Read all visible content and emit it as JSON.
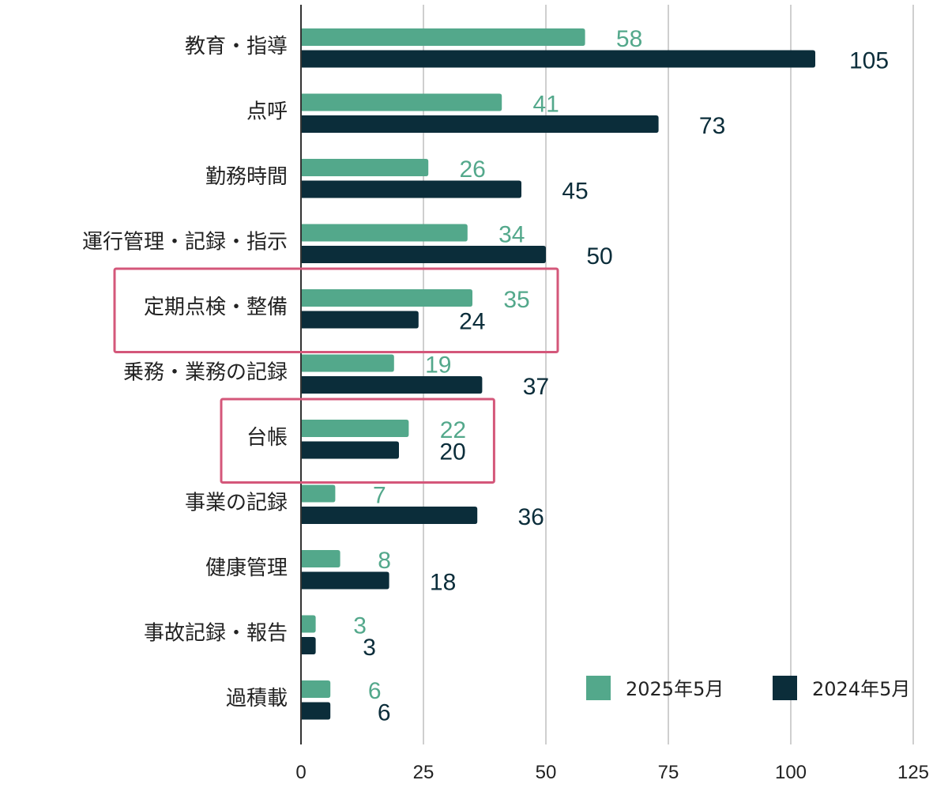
{
  "chart_data": {
    "type": "bar",
    "orientation": "horizontal",
    "categories": [
      "教育・指導",
      "点呼",
      "勤務時間",
      "運行管理・記録・指示",
      "定期点検・整備",
      "乗務・業務の記録",
      "台帳",
      "事業の記録",
      "健康管理",
      "事故記録・報告",
      "過積載"
    ],
    "series": [
      {
        "name": "2025年5月",
        "color": "#53a88b",
        "values": [
          58,
          41,
          26,
          34,
          35,
          19,
          22,
          7,
          8,
          3,
          6
        ]
      },
      {
        "name": "2024年5月",
        "color": "#0b2d3a",
        "values": [
          105,
          73,
          45,
          50,
          24,
          37,
          20,
          36,
          18,
          3,
          6
        ]
      }
    ],
    "xlim": [
      0,
      125
    ],
    "xticks": [
      "0",
      "25",
      "50",
      "75",
      "100",
      "125"
    ],
    "grid": true,
    "legend_position": "bottom-right",
    "highlighted_categories": [
      "定期点検・整備",
      "台帳"
    ],
    "highlight_color": "#d4577a"
  }
}
